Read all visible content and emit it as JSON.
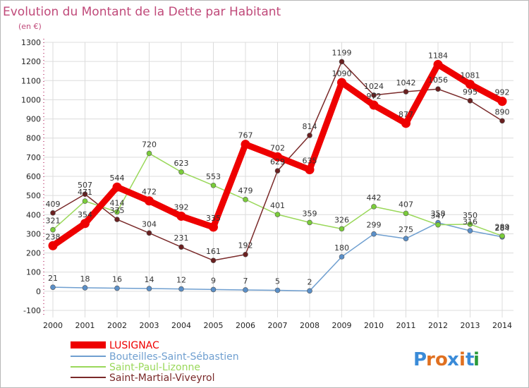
{
  "colors": {
    "title": "#c04a7a",
    "series": [
      "#ee0000",
      "#6f9fd0",
      "#9ad85a",
      "#7a2a2a"
    ],
    "marker_fill": [
      "#ee0000",
      "#5a8fc8",
      "#7acc3a",
      "#6a2020"
    ]
  },
  "logo": {
    "letters": [
      "P",
      "r",
      "o",
      "x",
      "i",
      "t",
      "i"
    ],
    "colors": [
      "#3a8bd8",
      "#e07020",
      "#e07020",
      "#3a8bd8",
      "#e07020",
      "#3a8bd8",
      "#2a9a3a"
    ]
  },
  "chart_data": {
    "type": "line",
    "title": "Evolution du Montant de la Dette par Habitant",
    "subtitle": "(en €)",
    "categories": [
      "2000",
      "2001",
      "2002",
      "2003",
      "2004",
      "2005",
      "2006",
      "2007",
      "2008",
      "2009",
      "2010",
      "2011",
      "2012",
      "2013",
      "2014"
    ],
    "yticks": [
      "1300",
      "1200",
      "1100",
      "1000",
      "900",
      "800",
      "700",
      "600",
      "500",
      "400",
      "300",
      "200",
      "100",
      "0",
      "-100"
    ],
    "ylim": [
      -100,
      1300
    ],
    "grid": true,
    "legend_position": "bottom-left",
    "series": [
      {
        "name": "LUSIGNAC",
        "values": [
          238,
          354,
          544,
          472,
          392,
          335,
          767,
          702,
          635,
          1090,
          972,
          877,
          1184,
          1081,
          992
        ],
        "labels": [
          "238",
          "354",
          "544",
          "472",
          "392",
          "335",
          "767",
          "702",
          "635",
          "1090",
          "972",
          "877",
          "1184",
          "1081",
          "992"
        ]
      },
      {
        "name": "Bouteilles-Saint-Sébastien",
        "values": [
          21,
          18,
          16,
          14,
          12,
          9,
          7,
          5,
          2,
          180,
          299,
          275,
          358,
          316,
          284
        ],
        "labels": [
          "21",
          "18",
          "16",
          "14",
          "12",
          "9",
          "7",
          "5",
          "2",
          "180",
          "299",
          "275",
          "358",
          "316",
          "284"
        ]
      },
      {
        "name": "Saint-Paul-Lizonne",
        "values": [
          321,
          471,
          414,
          720,
          623,
          553,
          479,
          401,
          359,
          326,
          442,
          407,
          347,
          350,
          289
        ],
        "labels": [
          "321",
          "471",
          "414",
          "720",
          "623",
          "553",
          "479",
          "401",
          "359",
          "326",
          "442",
          "407",
          "347",
          "350",
          "289"
        ]
      },
      {
        "name": "Saint-Martial-Viveyrol",
        "values": [
          409,
          507,
          375,
          304,
          231,
          161,
          192,
          629,
          814,
          1199,
          1024,
          1042,
          1056,
          995,
          890
        ],
        "labels": [
          "409",
          "507",
          "375",
          "304",
          "231",
          "161",
          "192",
          "629",
          "814",
          "1199",
          "1024",
          "1042",
          "1056",
          "995",
          "890"
        ]
      }
    ]
  }
}
